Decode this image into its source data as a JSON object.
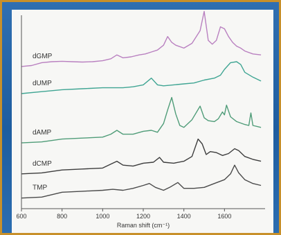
{
  "chart_data": {
    "type": "line",
    "title": "",
    "xlabel": "Raman shift (cm⁻¹)",
    "ylabel": "",
    "xlim": [
      600,
      1800
    ],
    "ylim": [
      0,
      10
    ],
    "xticks": [
      "600",
      "800",
      "1000",
      "1200",
      "1400",
      "1600"
    ],
    "xtick_values": [
      600,
      800,
      1000,
      1200,
      1400,
      1600
    ],
    "grid": false,
    "legend": "none",
    "series": [
      {
        "name": "dGMP",
        "color": "#b980c0",
        "x": [
          600,
          650,
          700,
          750,
          800,
          850,
          900,
          950,
          1000,
          1040,
          1070,
          1100,
          1140,
          1180,
          1210,
          1240,
          1270,
          1300,
          1320,
          1340,
          1360,
          1400,
          1440,
          1480,
          1500,
          1520,
          1540,
          1560,
          1580,
          1600,
          1620,
          1640,
          1660,
          1680,
          1700,
          1740,
          1780
        ],
        "y": [
          7.35,
          7.4,
          7.55,
          7.6,
          7.62,
          7.6,
          7.58,
          7.6,
          7.65,
          7.75,
          7.95,
          7.8,
          7.85,
          7.95,
          8.0,
          8.1,
          8.2,
          8.45,
          8.9,
          8.6,
          8.45,
          8.3,
          8.55,
          9.2,
          10.2,
          8.7,
          8.5,
          8.7,
          9.4,
          9.3,
          8.9,
          8.6,
          8.4,
          8.3,
          8.15,
          8.0,
          7.95
        ]
      },
      {
        "name": "dUMP",
        "color": "#3fa593",
        "x": [
          600,
          700,
          800,
          900,
          1000,
          1100,
          1150,
          1200,
          1240,
          1270,
          1300,
          1350,
          1400,
          1450,
          1500,
          1550,
          1580,
          1600,
          1630,
          1660,
          1680,
          1700,
          1740,
          1780
        ],
        "y": [
          5.95,
          6.05,
          6.15,
          6.2,
          6.25,
          6.25,
          6.3,
          6.4,
          6.75,
          6.4,
          6.35,
          6.4,
          6.45,
          6.5,
          6.65,
          6.75,
          6.9,
          7.2,
          7.55,
          7.6,
          7.45,
          7.05,
          6.8,
          6.6
        ]
      },
      {
        "name": "dAMP",
        "color": "#4f9c78",
        "x": [
          600,
          700,
          800,
          900,
          1000,
          1040,
          1070,
          1100,
          1150,
          1200,
          1240,
          1270,
          1300,
          1320,
          1340,
          1360,
          1380,
          1400,
          1440,
          1480,
          1500,
          1520,
          1550,
          1570,
          1590,
          1600,
          1610,
          1630,
          1660,
          1700,
          1720,
          1730,
          1740,
          1780
        ],
        "y": [
          3.4,
          3.45,
          3.6,
          3.65,
          3.7,
          3.85,
          4.05,
          3.85,
          3.85,
          4.0,
          4.05,
          3.95,
          4.4,
          5.1,
          5.75,
          4.9,
          4.3,
          4.2,
          4.6,
          5.3,
          4.7,
          4.55,
          4.5,
          4.65,
          5.0,
          4.85,
          5.35,
          4.75,
          4.5,
          4.35,
          4.3,
          4.95,
          4.3,
          4.2
        ]
      },
      {
        "name": "dCMP",
        "color": "#3c3c3c",
        "x": [
          600,
          700,
          800,
          900,
          1000,
          1040,
          1070,
          1100,
          1150,
          1200,
          1250,
          1280,
          1300,
          1350,
          1400,
          1440,
          1470,
          1490,
          1510,
          1530,
          1560,
          1590,
          1620,
          1650,
          1670,
          1700,
          1740,
          1780
        ],
        "y": [
          1.8,
          1.85,
          2.0,
          2.05,
          2.1,
          2.3,
          2.45,
          2.25,
          2.2,
          2.35,
          2.4,
          2.65,
          2.4,
          2.35,
          2.45,
          2.7,
          3.6,
          3.35,
          2.8,
          2.95,
          2.9,
          2.75,
          2.85,
          3.1,
          3.0,
          2.7,
          2.55,
          2.45
        ]
      },
      {
        "name": "TMP",
        "color": "#4a4a4a",
        "x": [
          600,
          700,
          800,
          900,
          1000,
          1050,
          1100,
          1150,
          1200,
          1230,
          1260,
          1300,
          1330,
          1370,
          1400,
          1450,
          1500,
          1550,
          1600,
          1630,
          1650,
          1670,
          1700,
          1740,
          1780
        ],
        "y": [
          0.55,
          0.6,
          0.85,
          0.9,
          0.95,
          1.0,
          0.95,
          1.05,
          1.2,
          1.3,
          1.1,
          0.95,
          1.1,
          1.35,
          1.05,
          1.05,
          1.1,
          1.3,
          1.5,
          1.8,
          2.25,
          1.85,
          1.5,
          1.3,
          1.2
        ]
      }
    ]
  }
}
